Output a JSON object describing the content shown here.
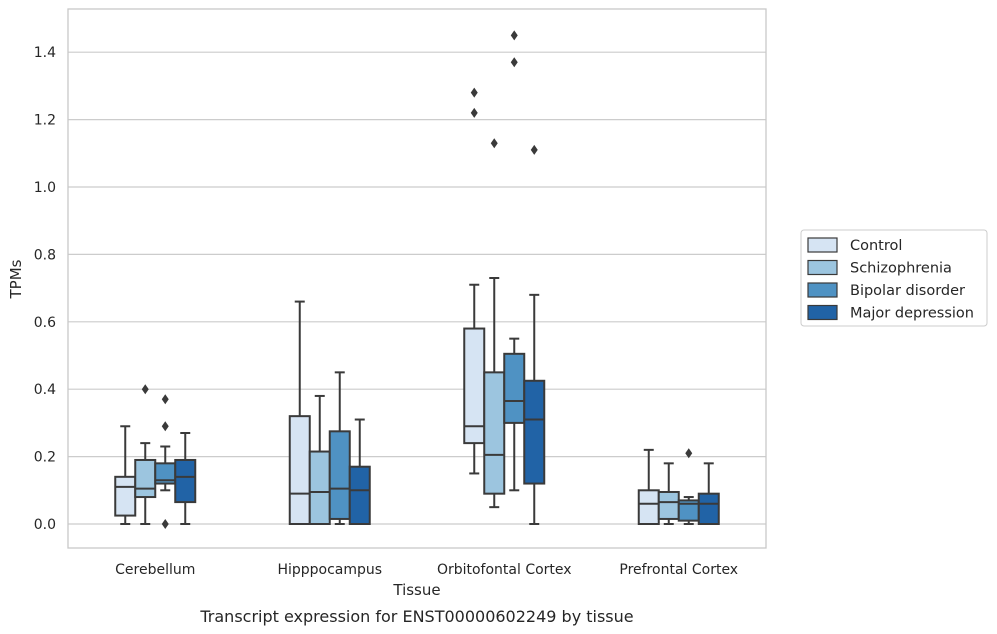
{
  "caption": "Transcript expression for ENST00000602249 by tissue",
  "colors": {
    "Control": "#d6e4f3",
    "Schizophrenia": "#9cc5df",
    "Bipolar disorder": "#4f92c3",
    "Major depression": "#2163a6",
    "edge": "#3a3a3a",
    "grid": "#cccccc",
    "frame": "#c8c8c8"
  },
  "chart_data": {
    "type": "box",
    "xlabel": "Tissue",
    "ylabel": "TPMs",
    "ylim": [
      -0.07,
      1.52
    ],
    "yticks": [
      0.0,
      0.2,
      0.4,
      0.6,
      0.8,
      1.0,
      1.2,
      1.4
    ],
    "ytick_labels": [
      "0.0",
      "0.2",
      "0.4",
      "0.6",
      "0.8",
      "1.0",
      "1.2",
      "1.4"
    ],
    "grid": "horizontal",
    "legend_position": "right",
    "categories": [
      "Cerebellum",
      "Hipppocampus",
      "Orbitofontal Cortex",
      "Prefrontal Cortex"
    ],
    "series": [
      {
        "name": "Control",
        "boxes": [
          {
            "whislo": 0.0,
            "q1": 0.025,
            "med": 0.11,
            "q3": 0.14,
            "whishi": 0.29,
            "fliers": []
          },
          {
            "whislo": 0.0,
            "q1": 0.0,
            "med": 0.09,
            "q3": 0.32,
            "whishi": 0.66,
            "fliers": []
          },
          {
            "whislo": 0.15,
            "q1": 0.24,
            "med": 0.29,
            "q3": 0.58,
            "whishi": 0.71,
            "fliers": [
              1.22,
              1.28
            ]
          },
          {
            "whislo": 0.0,
            "q1": 0.0,
            "med": 0.06,
            "q3": 0.1,
            "whishi": 0.22,
            "fliers": []
          }
        ]
      },
      {
        "name": "Schizophrenia",
        "boxes": [
          {
            "whislo": 0.0,
            "q1": 0.08,
            "med": 0.105,
            "q3": 0.19,
            "whishi": 0.24,
            "fliers": [
              0.4
            ]
          },
          {
            "whislo": 0.0,
            "q1": 0.0,
            "med": 0.095,
            "q3": 0.215,
            "whishi": 0.38,
            "fliers": []
          },
          {
            "whislo": 0.05,
            "q1": 0.09,
            "med": 0.205,
            "q3": 0.45,
            "whishi": 0.73,
            "fliers": [
              1.13
            ]
          },
          {
            "whislo": 0.0,
            "q1": 0.015,
            "med": 0.065,
            "q3": 0.095,
            "whishi": 0.18,
            "fliers": []
          }
        ]
      },
      {
        "name": "Bipolar disorder",
        "boxes": [
          {
            "whislo": 0.1,
            "q1": 0.12,
            "med": 0.13,
            "q3": 0.18,
            "whishi": 0.23,
            "fliers": [
              0.0,
              0.29,
              0.37
            ]
          },
          {
            "whislo": 0.0,
            "q1": 0.015,
            "med": 0.105,
            "q3": 0.275,
            "whishi": 0.45,
            "fliers": []
          },
          {
            "whislo": 0.1,
            "q1": 0.3,
            "med": 0.365,
            "q3": 0.505,
            "whishi": 0.55,
            "fliers": [
              1.37,
              1.45
            ]
          },
          {
            "whislo": 0.0,
            "q1": 0.01,
            "med": 0.06,
            "q3": 0.07,
            "whishi": 0.08,
            "fliers": [
              0.21
            ]
          }
        ]
      },
      {
        "name": "Major depression",
        "boxes": [
          {
            "whislo": 0.0,
            "q1": 0.065,
            "med": 0.14,
            "q3": 0.19,
            "whishi": 0.27,
            "fliers": []
          },
          {
            "whislo": 0.0,
            "q1": 0.0,
            "med": 0.1,
            "q3": 0.17,
            "whishi": 0.31,
            "fliers": []
          },
          {
            "whislo": 0.0,
            "q1": 0.12,
            "med": 0.31,
            "q3": 0.425,
            "whishi": 0.68,
            "fliers": [
              1.11
            ]
          },
          {
            "whislo": 0.0,
            "q1": 0.0,
            "med": 0.06,
            "q3": 0.09,
            "whishi": 0.18,
            "fliers": []
          }
        ]
      }
    ]
  }
}
